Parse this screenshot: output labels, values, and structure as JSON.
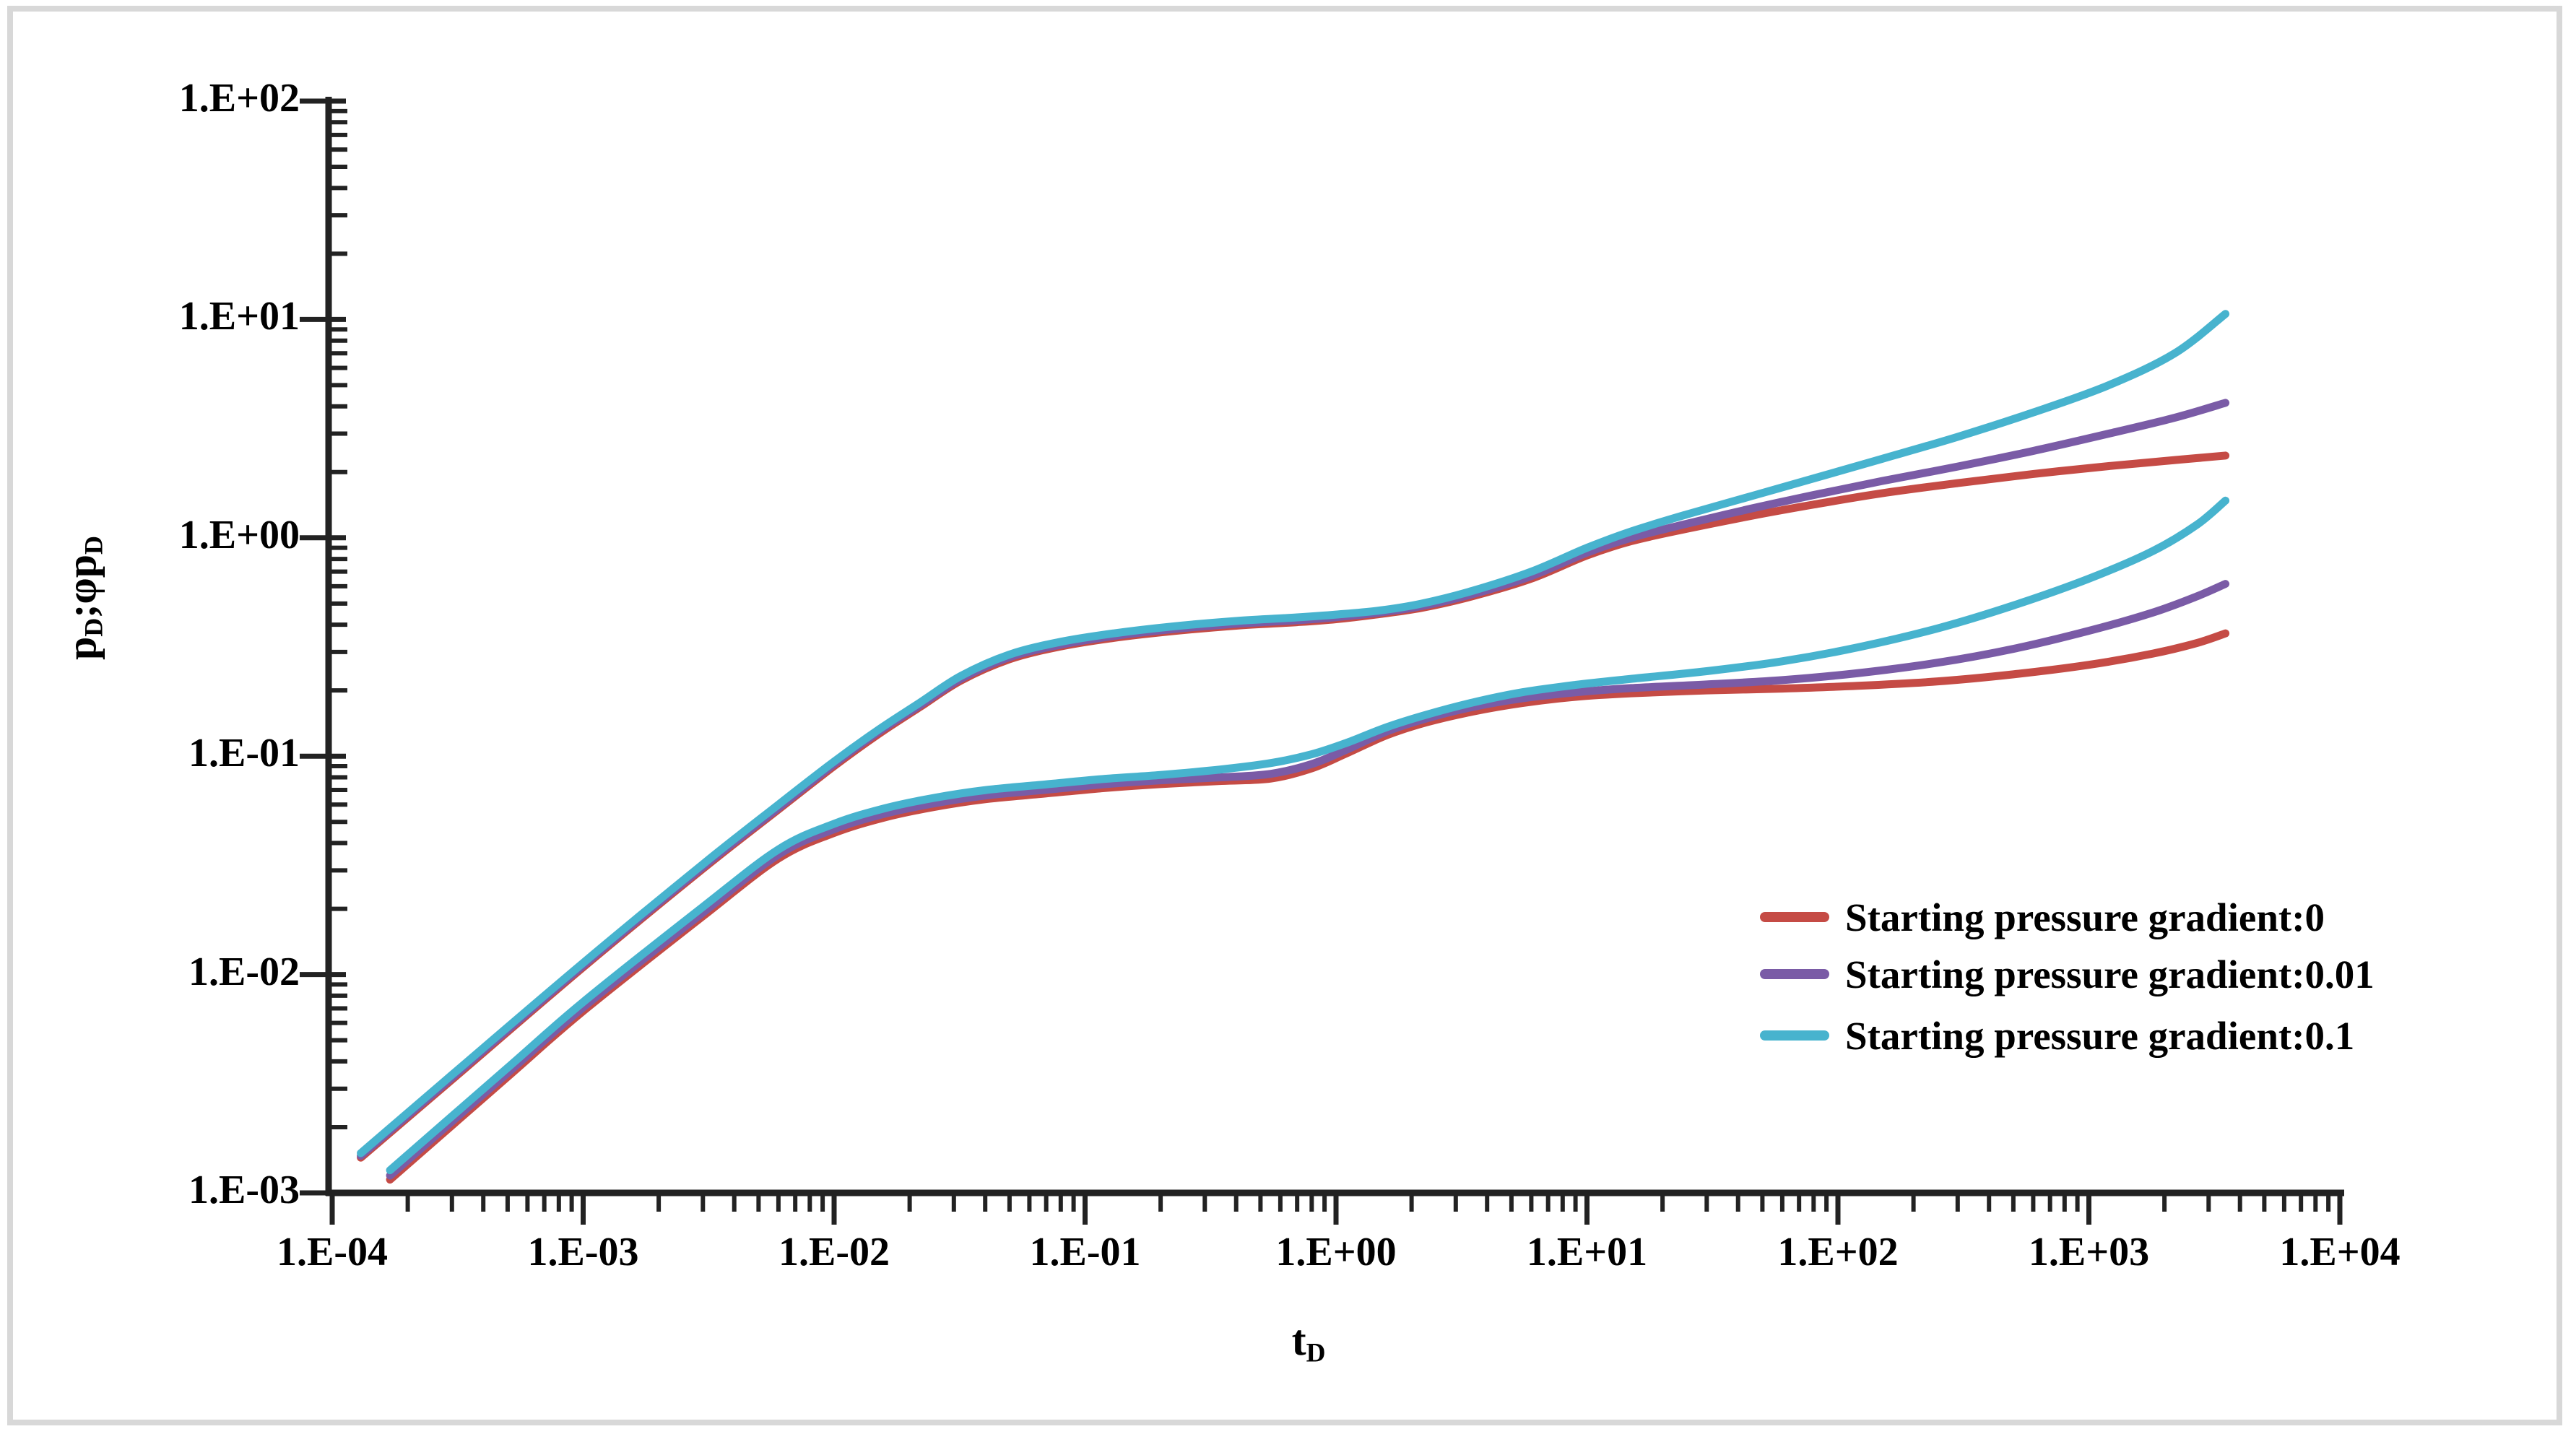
{
  "figure": {
    "background": "#ffffff",
    "frame_color": "#d8d8d8"
  },
  "chart_data": {
    "type": "line",
    "title": "",
    "x_axis": {
      "label_parts": [
        {
          "t": "t"
        },
        {
          "t": "D",
          "sub": true
        }
      ],
      "scale": "log",
      "xlim": [
        0.0001,
        10000
      ],
      "tick_labels": [
        "1.E-04",
        "1.E-03",
        "1.E-02",
        "1.E-01",
        "1.E+00",
        "1.E+01",
        "1.E+02",
        "1.E+03",
        "1.E+04"
      ],
      "tick_exponents": [
        -4,
        -3,
        -2,
        -1,
        0,
        1,
        2,
        3,
        4
      ]
    },
    "y_axis": {
      "label_parts": [
        {
          "t": "p"
        },
        {
          "t": "D",
          "sub": true
        },
        {
          "t": ";φ"
        },
        {
          "t": "p"
        },
        {
          "t": "D",
          "sub": true
        }
      ],
      "scale": "log",
      "ylim": [
        0.001,
        100
      ],
      "tick_labels": [
        "1.E-03",
        "1.E-02",
        "1.E-01",
        "1.E+00",
        "1.E+01",
        "1.E+02"
      ],
      "tick_exponents": [
        -3,
        -2,
        -1,
        0,
        1,
        2
      ]
    },
    "grid": false,
    "legend": {
      "position": "mid-right",
      "items": [
        {
          "label": "Starting pressure gradient:0",
          "color": "#c54b45"
        },
        {
          "label": "Starting pressure gradient:0.01",
          "color": "#7a5ba6"
        },
        {
          "label": "Starting pressure gradient:0.1",
          "color": "#47b3ce"
        }
      ]
    },
    "series": [
      {
        "name": "pD, starting pressure gradient 0",
        "color": "#c54b45",
        "points": [
          [
            0.00013,
            0.00145
          ],
          [
            0.0003,
            0.0033
          ],
          [
            0.001,
            0.0108
          ],
          [
            0.003,
            0.0305
          ],
          [
            0.006,
            0.057
          ],
          [
            0.01,
            0.09
          ],
          [
            0.015,
            0.126
          ],
          [
            0.022,
            0.168
          ],
          [
            0.032,
            0.222
          ],
          [
            0.05,
            0.278
          ],
          [
            0.08,
            0.318
          ],
          [
            0.13,
            0.348
          ],
          [
            0.22,
            0.373
          ],
          [
            0.4,
            0.396
          ],
          [
            0.7,
            0.411
          ],
          [
            1,
            0.424
          ],
          [
            1.5,
            0.448
          ],
          [
            2.2,
            0.478
          ],
          [
            3.5,
            0.54
          ],
          [
            6,
            0.65
          ],
          [
            10,
            0.83
          ],
          [
            15,
            0.965
          ],
          [
            25,
            1.1
          ],
          [
            45,
            1.26
          ],
          [
            80,
            1.42
          ],
          [
            150,
            1.6
          ],
          [
            300,
            1.78
          ],
          [
            600,
            1.96
          ],
          [
            1200,
            2.13
          ],
          [
            2200,
            2.27
          ],
          [
            3500,
            2.38
          ]
        ]
      },
      {
        "name": "pD, starting pressure gradient 0.01",
        "color": "#7a5ba6",
        "points": [
          [
            0.00013,
            0.00148
          ],
          [
            0.0003,
            0.00337
          ],
          [
            0.001,
            0.011
          ],
          [
            0.003,
            0.0311
          ],
          [
            0.006,
            0.058
          ],
          [
            0.01,
            0.092
          ],
          [
            0.015,
            0.129
          ],
          [
            0.022,
            0.171
          ],
          [
            0.032,
            0.226
          ],
          [
            0.05,
            0.284
          ],
          [
            0.08,
            0.324
          ],
          [
            0.13,
            0.355
          ],
          [
            0.22,
            0.381
          ],
          [
            0.4,
            0.404
          ],
          [
            0.7,
            0.419
          ],
          [
            1,
            0.433
          ],
          [
            1.5,
            0.455
          ],
          [
            2.2,
            0.487
          ],
          [
            3.5,
            0.552
          ],
          [
            6,
            0.668
          ],
          [
            10,
            0.855
          ],
          [
            15,
            1.0
          ],
          [
            25,
            1.16
          ],
          [
            45,
            1.36
          ],
          [
            80,
            1.57
          ],
          [
            150,
            1.82
          ],
          [
            300,
            2.12
          ],
          [
            600,
            2.5
          ],
          [
            1200,
            3.0
          ],
          [
            2200,
            3.55
          ],
          [
            3500,
            4.15
          ]
        ]
      },
      {
        "name": "pD, starting pressure gradient 0.1",
        "color": "#47b3ce",
        "points": [
          [
            0.00013,
            0.00152
          ],
          [
            0.0003,
            0.00347
          ],
          [
            0.001,
            0.0113
          ],
          [
            0.003,
            0.032
          ],
          [
            0.006,
            0.06
          ],
          [
            0.01,
            0.0945
          ],
          [
            0.015,
            0.132
          ],
          [
            0.022,
            0.176
          ],
          [
            0.032,
            0.233
          ],
          [
            0.05,
            0.292
          ],
          [
            0.08,
            0.334
          ],
          [
            0.13,
            0.365
          ],
          [
            0.22,
            0.392
          ],
          [
            0.4,
            0.416
          ],
          [
            0.7,
            0.432
          ],
          [
            1,
            0.445
          ],
          [
            1.5,
            0.465
          ],
          [
            2.2,
            0.5
          ],
          [
            3.5,
            0.572
          ],
          [
            6,
            0.7
          ],
          [
            10,
            0.9
          ],
          [
            15,
            1.07
          ],
          [
            25,
            1.28
          ],
          [
            45,
            1.55
          ],
          [
            80,
            1.87
          ],
          [
            150,
            2.3
          ],
          [
            300,
            2.9
          ],
          [
            600,
            3.75
          ],
          [
            1200,
            5.0
          ],
          [
            2200,
            7.0
          ],
          [
            3500,
            10.6
          ]
        ]
      },
      {
        "name": "dpD, starting pressure gradient 0",
        "color": "#c54b45",
        "points": [
          [
            0.00017,
            0.00115
          ],
          [
            0.0005,
            0.0034
          ],
          [
            0.001,
            0.0068
          ],
          [
            0.003,
            0.0185
          ],
          [
            0.006,
            0.034
          ],
          [
            0.01,
            0.0445
          ],
          [
            0.016,
            0.0525
          ],
          [
            0.025,
            0.0585
          ],
          [
            0.04,
            0.0635
          ],
          [
            0.07,
            0.0675
          ],
          [
            0.12,
            0.0715
          ],
          [
            0.2,
            0.0745
          ],
          [
            0.35,
            0.077
          ],
          [
            0.55,
            0.079
          ],
          [
            0.8,
            0.088
          ],
          [
            1.1,
            0.103
          ],
          [
            1.6,
            0.125
          ],
          [
            2.3,
            0.143
          ],
          [
            3.5,
            0.16
          ],
          [
            5.5,
            0.175
          ],
          [
            9,
            0.187
          ],
          [
            15,
            0.194
          ],
          [
            30,
            0.2
          ],
          [
            60,
            0.204
          ],
          [
            120,
            0.21
          ],
          [
            250,
            0.22
          ],
          [
            500,
            0.237
          ],
          [
            1000,
            0.262
          ],
          [
            1800,
            0.295
          ],
          [
            2700,
            0.33
          ],
          [
            3500,
            0.365
          ]
        ]
      },
      {
        "name": "dpD, starting pressure gradient 0.01",
        "color": "#7a5ba6",
        "points": [
          [
            0.00017,
            0.0012
          ],
          [
            0.0005,
            0.00354
          ],
          [
            0.001,
            0.00707
          ],
          [
            0.003,
            0.0192
          ],
          [
            0.006,
            0.0354
          ],
          [
            0.01,
            0.0463
          ],
          [
            0.016,
            0.0546
          ],
          [
            0.025,
            0.0608
          ],
          [
            0.04,
            0.066
          ],
          [
            0.07,
            0.0702
          ],
          [
            0.12,
            0.0744
          ],
          [
            0.2,
            0.0775
          ],
          [
            0.35,
            0.08
          ],
          [
            0.55,
            0.083
          ],
          [
            0.8,
            0.092
          ],
          [
            1.1,
            0.107
          ],
          [
            1.6,
            0.13
          ],
          [
            2.3,
            0.149
          ],
          [
            3.5,
            0.168
          ],
          [
            5.5,
            0.184
          ],
          [
            9,
            0.196
          ],
          [
            15,
            0.205
          ],
          [
            30,
            0.213
          ],
          [
            60,
            0.223
          ],
          [
            120,
            0.24
          ],
          [
            250,
            0.268
          ],
          [
            500,
            0.31
          ],
          [
            1000,
            0.375
          ],
          [
            1800,
            0.455
          ],
          [
            2700,
            0.54
          ],
          [
            3500,
            0.615
          ]
        ]
      },
      {
        "name": "dpD, starting pressure gradient 0.1",
        "color": "#47b3ce",
        "points": [
          [
            0.00017,
            0.00127
          ],
          [
            0.0005,
            0.00374
          ],
          [
            0.001,
            0.00748
          ],
          [
            0.003,
            0.0204
          ],
          [
            0.006,
            0.0374
          ],
          [
            0.01,
            0.049
          ],
          [
            0.016,
            0.0578
          ],
          [
            0.025,
            0.0644
          ],
          [
            0.04,
            0.0699
          ],
          [
            0.07,
            0.0743
          ],
          [
            0.12,
            0.0787
          ],
          [
            0.2,
            0.082
          ],
          [
            0.35,
            0.087
          ],
          [
            0.55,
            0.093
          ],
          [
            0.8,
            0.102
          ],
          [
            1.1,
            0.115
          ],
          [
            1.6,
            0.136
          ],
          [
            2.3,
            0.155
          ],
          [
            3.5,
            0.176
          ],
          [
            5.5,
            0.196
          ],
          [
            9,
            0.212
          ],
          [
            15,
            0.226
          ],
          [
            30,
            0.245
          ],
          [
            60,
            0.272
          ],
          [
            120,
            0.315
          ],
          [
            250,
            0.385
          ],
          [
            500,
            0.49
          ],
          [
            1000,
            0.65
          ],
          [
            1800,
            0.87
          ],
          [
            2700,
            1.15
          ],
          [
            3500,
            1.48
          ]
        ]
      }
    ]
  }
}
